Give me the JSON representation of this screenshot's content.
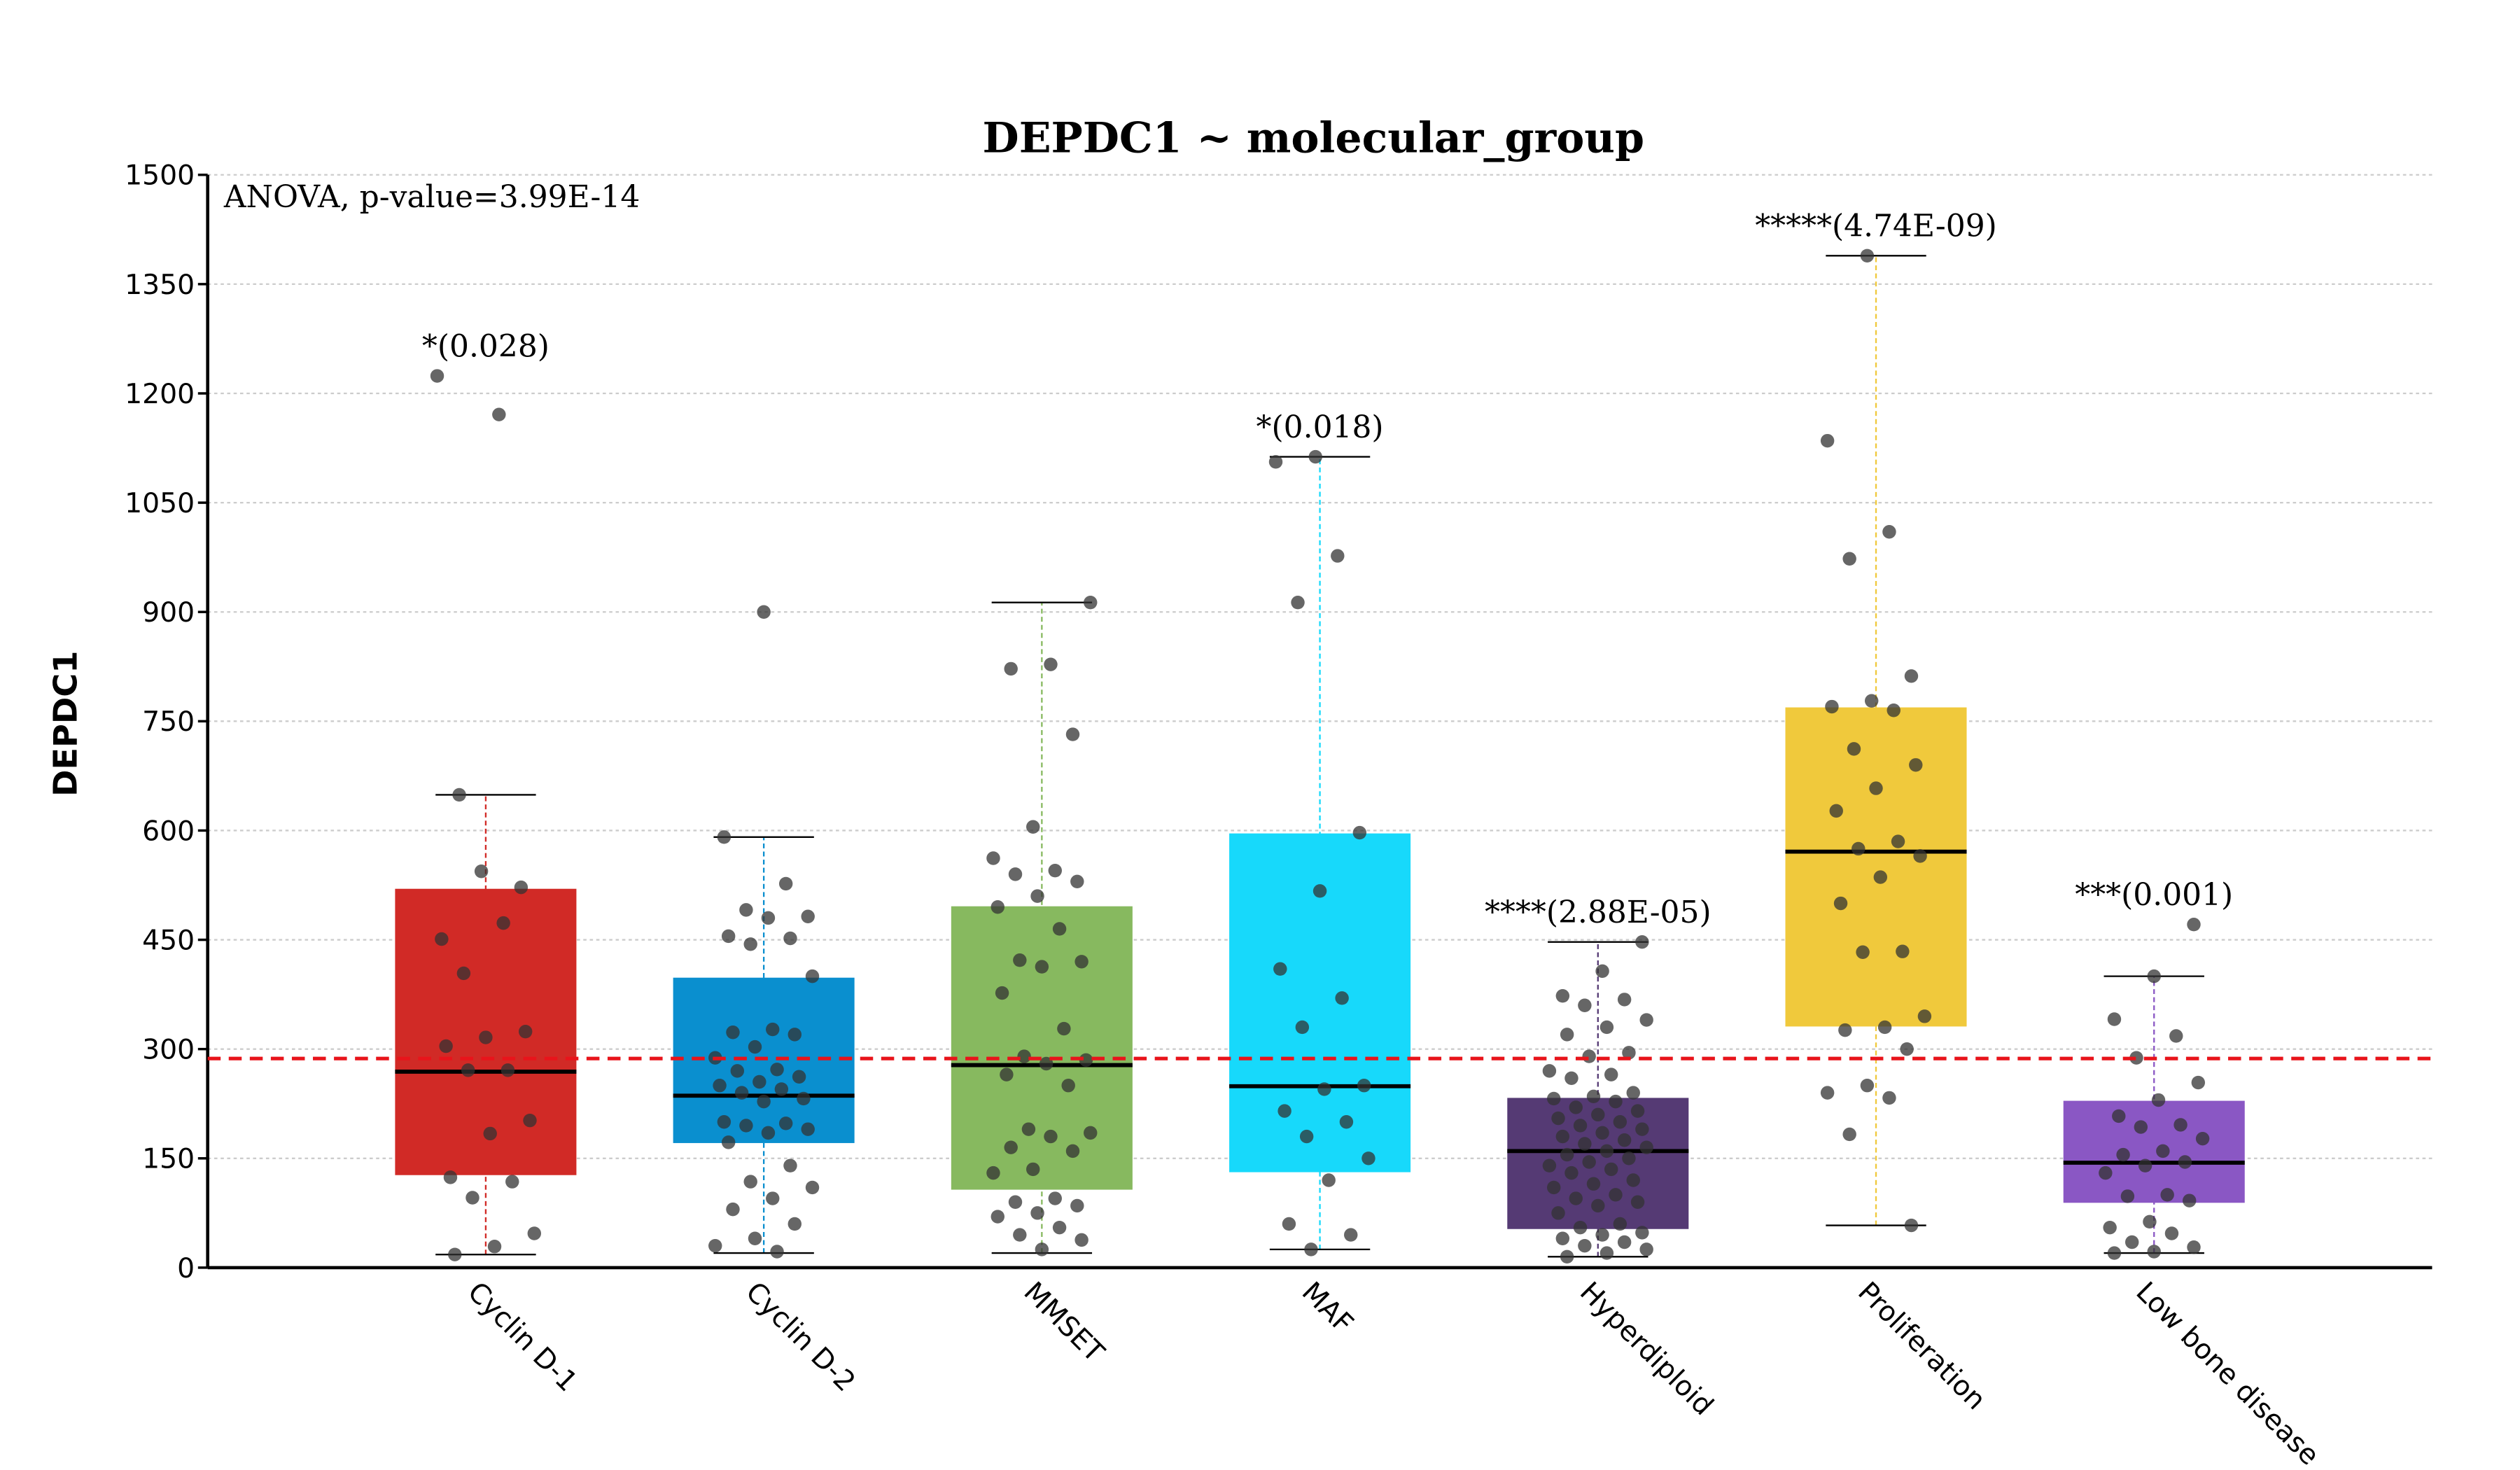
{
  "chart_data": {
    "type": "box",
    "title": "DEPDC1 ~ molecular_group",
    "subtitle": "ANOVA, p-value=3.99E-14",
    "y_label": "DEPDC1",
    "ylim": [
      0,
      1500
    ],
    "yticks": [
      0,
      150,
      300,
      450,
      600,
      750,
      900,
      1050,
      1200,
      1350,
      1500
    ],
    "grid": true,
    "reference_line": 287,
    "reference_color": "#e8141b",
    "point_color": "#333333",
    "categories": [
      "Cyclin D-1",
      "Cyclin D-2",
      "MMSET",
      "MAF",
      "Hyperdiploid",
      "Proliferation",
      "Low bone disease"
    ],
    "boxes": [
      {
        "color": "#d12a26",
        "whislo": 18,
        "q1": 127,
        "med": 269,
        "q3": 520,
        "whishi": 649,
        "annotation": "*(0.028)",
        "points": [
          1224,
          1171,
          649,
          522,
          544,
          451,
          473,
          404,
          324,
          316,
          304,
          271,
          271,
          202,
          184,
          124,
          118,
          96,
          47,
          29,
          18
        ]
      },
      {
        "color": "#0a8fcf",
        "whislo": 20,
        "q1": 171,
        "med": 236,
        "q3": 398,
        "whishi": 591,
        "annotation": null,
        "points": [
          900,
          591,
          527,
          491,
          482,
          480,
          455,
          452,
          444,
          400,
          327,
          323,
          320,
          303,
          288,
          272,
          270,
          262,
          255,
          250,
          245,
          240,
          232,
          228,
          200,
          198,
          195,
          190,
          185,
          172,
          140,
          118,
          110,
          95,
          80,
          60,
          40,
          30,
          22
        ]
      },
      {
        "color": "#87b95f",
        "whislo": 20,
        "q1": 107,
        "med": 278,
        "q3": 496,
        "whishi": 913,
        "annotation": null,
        "points": [
          913,
          828,
          822,
          732,
          605,
          562,
          545,
          540,
          530,
          510,
          495,
          465,
          422,
          420,
          413,
          377,
          328,
          290,
          285,
          280,
          265,
          250,
          190,
          185,
          180,
          165,
          160,
          135,
          130,
          95,
          90,
          85,
          75,
          70,
          55,
          45,
          38,
          25
        ]
      },
      {
        "color": "#17d9fb",
        "whislo": 25,
        "q1": 131,
        "med": 249,
        "q3": 596,
        "whishi": 1113,
        "annotation": "*(0.018)",
        "points": [
          1113,
          1106,
          977,
          913,
          597,
          517,
          410,
          370,
          330,
          250,
          245,
          215,
          200,
          180,
          150,
          120,
          60,
          45,
          25
        ]
      },
      {
        "color": "#553a74",
        "whislo": 15,
        "q1": 53,
        "med": 160,
        "q3": 233,
        "whishi": 447,
        "annotation": "****(2.88E-05)",
        "points": [
          447,
          407,
          373,
          368,
          360,
          340,
          330,
          320,
          295,
          290,
          270,
          265,
          260,
          240,
          235,
          232,
          228,
          220,
          215,
          210,
          205,
          200,
          195,
          190,
          185,
          180,
          175,
          170,
          165,
          160,
          155,
          150,
          145,
          140,
          135,
          130,
          120,
          115,
          110,
          100,
          95,
          90,
          85,
          75,
          60,
          55,
          48,
          45,
          40,
          35,
          30,
          25,
          20,
          15
        ]
      },
      {
        "color": "#f0c93c",
        "whislo": 58,
        "q1": 331,
        "med": 571,
        "q3": 769,
        "whishi": 1389,
        "annotation": "*****(4.74E-09)",
        "points": [
          1389,
          1135,
          1010,
          973,
          812,
          778,
          770,
          765,
          712,
          690,
          658,
          627,
          585,
          575,
          565,
          536,
          500,
          434,
          433,
          345,
          330,
          326,
          300,
          250,
          240,
          233,
          183,
          58
        ]
      },
      {
        "color": "#8a57c4",
        "whislo": 20,
        "q1": 89,
        "med": 144,
        "q3": 229,
        "whishi": 400,
        "annotation": "***(0.001)",
        "points": [
          471,
          400,
          341,
          318,
          288,
          254,
          230,
          208,
          196,
          193,
          177,
          160,
          155,
          145,
          140,
          130,
          100,
          98,
          92,
          63,
          55,
          47,
          35,
          28,
          22,
          20
        ]
      }
    ]
  }
}
